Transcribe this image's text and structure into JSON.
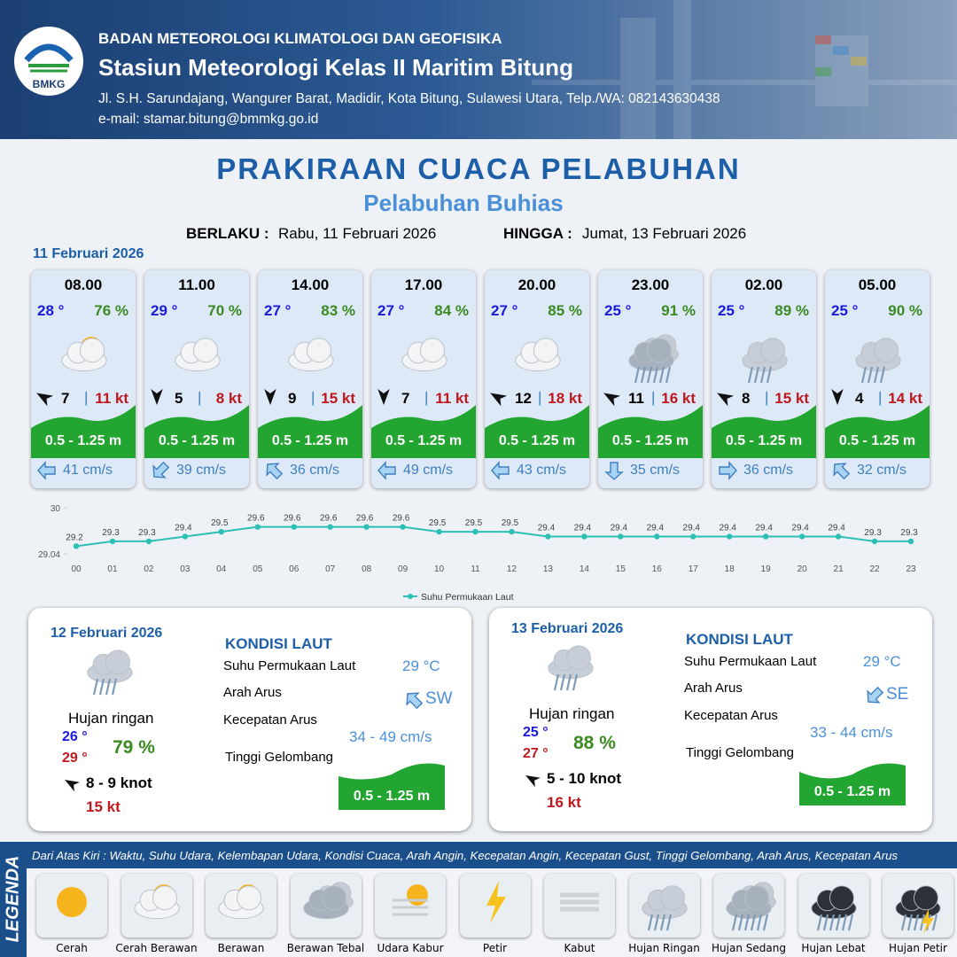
{
  "header": {
    "logo": "BMKG",
    "org": "BADAN METEOROLOGI KLIMATOLOGI DAN GEOFISIKA",
    "station": "Stasiun Meteorologi Kelas II Maritim Bitung",
    "address": "Jl. S.H. Sarundajang, Wangurer Barat, Madidir, Kota Bitung, Sulawesi Utara, Telp./WA: 082143630438",
    "email": "e-mail: stamar.bitung@bmmkg.go.id"
  },
  "title": "PRAKIRAAN CUACA PELABUHAN",
  "subtitle": "Pelabuhan Buhias",
  "validity": {
    "from_label": "BERLAKU :",
    "from": "Rabu, 11 Februari 2026",
    "to_label": "HINGGA :",
    "to": "Jumat, 13 Februari 2026"
  },
  "day1": {
    "date": "11 Februari 2026",
    "slots": [
      {
        "time": "08.00",
        "temp": "28 °",
        "humidity": "76 %",
        "wind": "7",
        "gust": "11 kt",
        "wave": "0.5 - 1.25 m",
        "current": "41 cm/s"
      },
      {
        "time": "11.00",
        "temp": "29 °",
        "humidity": "70 %",
        "wind": "5",
        "gust": "8 kt",
        "wave": "0.5 - 1.25 m",
        "current": "39 cm/s"
      },
      {
        "time": "14.00",
        "temp": "27 °",
        "humidity": "83 %",
        "wind": "9",
        "gust": "15 kt",
        "wave": "0.5 - 1.25 m",
        "current": "36 cm/s"
      },
      {
        "time": "17.00",
        "temp": "27 °",
        "humidity": "84 %",
        "wind": "7",
        "gust": "11 kt",
        "wave": "0.5 - 1.25 m",
        "current": "49 cm/s"
      },
      {
        "time": "20.00",
        "temp": "27 °",
        "humidity": "85 %",
        "wind": "12",
        "gust": "18 kt",
        "wave": "0.5 - 1.25 m",
        "current": "43 cm/s"
      },
      {
        "time": "23.00",
        "temp": "25 °",
        "humidity": "91 %",
        "wind": "11",
        "gust": "16 kt",
        "wave": "0.5 - 1.25 m",
        "current": "35 cm/s"
      },
      {
        "time": "02.00",
        "temp": "25 °",
        "humidity": "89 %",
        "wind": "8",
        "gust": "15 kt",
        "wave": "0.5 - 1.25 m",
        "current": "36 cm/s"
      },
      {
        "time": "05.00",
        "temp": "25 °",
        "humidity": "90 %",
        "wind": "4",
        "gust": "14 kt",
        "wave": "0.5 - 1.25 m",
        "current": "32 cm/s"
      }
    ]
  },
  "chart_data": {
    "type": "line",
    "categories": [
      "00",
      "01",
      "02",
      "03",
      "04",
      "05",
      "06",
      "07",
      "08",
      "09",
      "10",
      "11",
      "12",
      "13",
      "14",
      "15",
      "16",
      "17",
      "18",
      "19",
      "20",
      "21",
      "22",
      "23"
    ],
    "series": [
      {
        "name": "Suhu Permukaan Laut",
        "color": "#2cc0b4",
        "values": [
          29.2,
          29.3,
          29.3,
          29.4,
          29.5,
          29.6,
          29.6,
          29.6,
          29.6,
          29.6,
          29.5,
          29.5,
          29.5,
          29.4,
          29.4,
          29.4,
          29.4,
          29.4,
          29.4,
          29.4,
          29.4,
          29.4,
          29.3,
          29.3
        ]
      }
    ],
    "ylim": [
      29.04,
      30
    ],
    "yticks": [
      29.04,
      30
    ],
    "legend": "bottom"
  },
  "days": [
    {
      "date": "12 Februari 2026",
      "condition": "Hujan ringan",
      "temp_min": "26 °",
      "temp_max": "29 °",
      "humidity": "79 %",
      "wind": "8  - 9 knot",
      "gust": "15 kt",
      "sea_title": "KONDISI LAUT",
      "sst_label": "Suhu Permukaan Laut",
      "sst": "29 °C",
      "dir_label": "Arah Arus",
      "dir": "SW",
      "speed_label": "Kecepatan Arus",
      "speed": "34 - 49 cm/s",
      "wave_label": "Tinggi Gelombang",
      "wave": "0.5 - 1.25 m"
    },
    {
      "date": "13 Februari 2026",
      "condition": "Hujan ringan",
      "temp_min": "25 °",
      "temp_max": "27 °",
      "humidity": "88 %",
      "wind": "5 - 10 knot",
      "gust": "16 kt",
      "sea_title": "KONDISI LAUT",
      "sst_label": "Suhu Permukaan Laut",
      "sst": "29 °C",
      "dir_label": "Arah Arus",
      "dir": "SE",
      "speed_label": "Kecepatan Arus",
      "speed": "33 - 44 cm/s",
      "wave_label": "Tinggi Gelombang",
      "wave": "0.5 - 1.25 m"
    }
  ],
  "legend": {
    "title": "LEGENDA",
    "description": "Dari Atas Kiri : Waktu, Suhu Udara, Kelembapan Udara, Kondisi Cuaca, Arah Angin, Kecepatan Angin, Kecepatan Gust, Tinggi Gelombang, Arah Arus, Kecepatan Arus",
    "items": [
      "Cerah",
      "Cerah Berawan",
      "Berawan",
      "Berawan Tebal",
      "Udara Kabur",
      "Petir",
      "Kabut",
      "Hujan Ringan",
      "Hujan Sedang",
      "Hujan Lebat",
      "Hujan Petir"
    ]
  }
}
